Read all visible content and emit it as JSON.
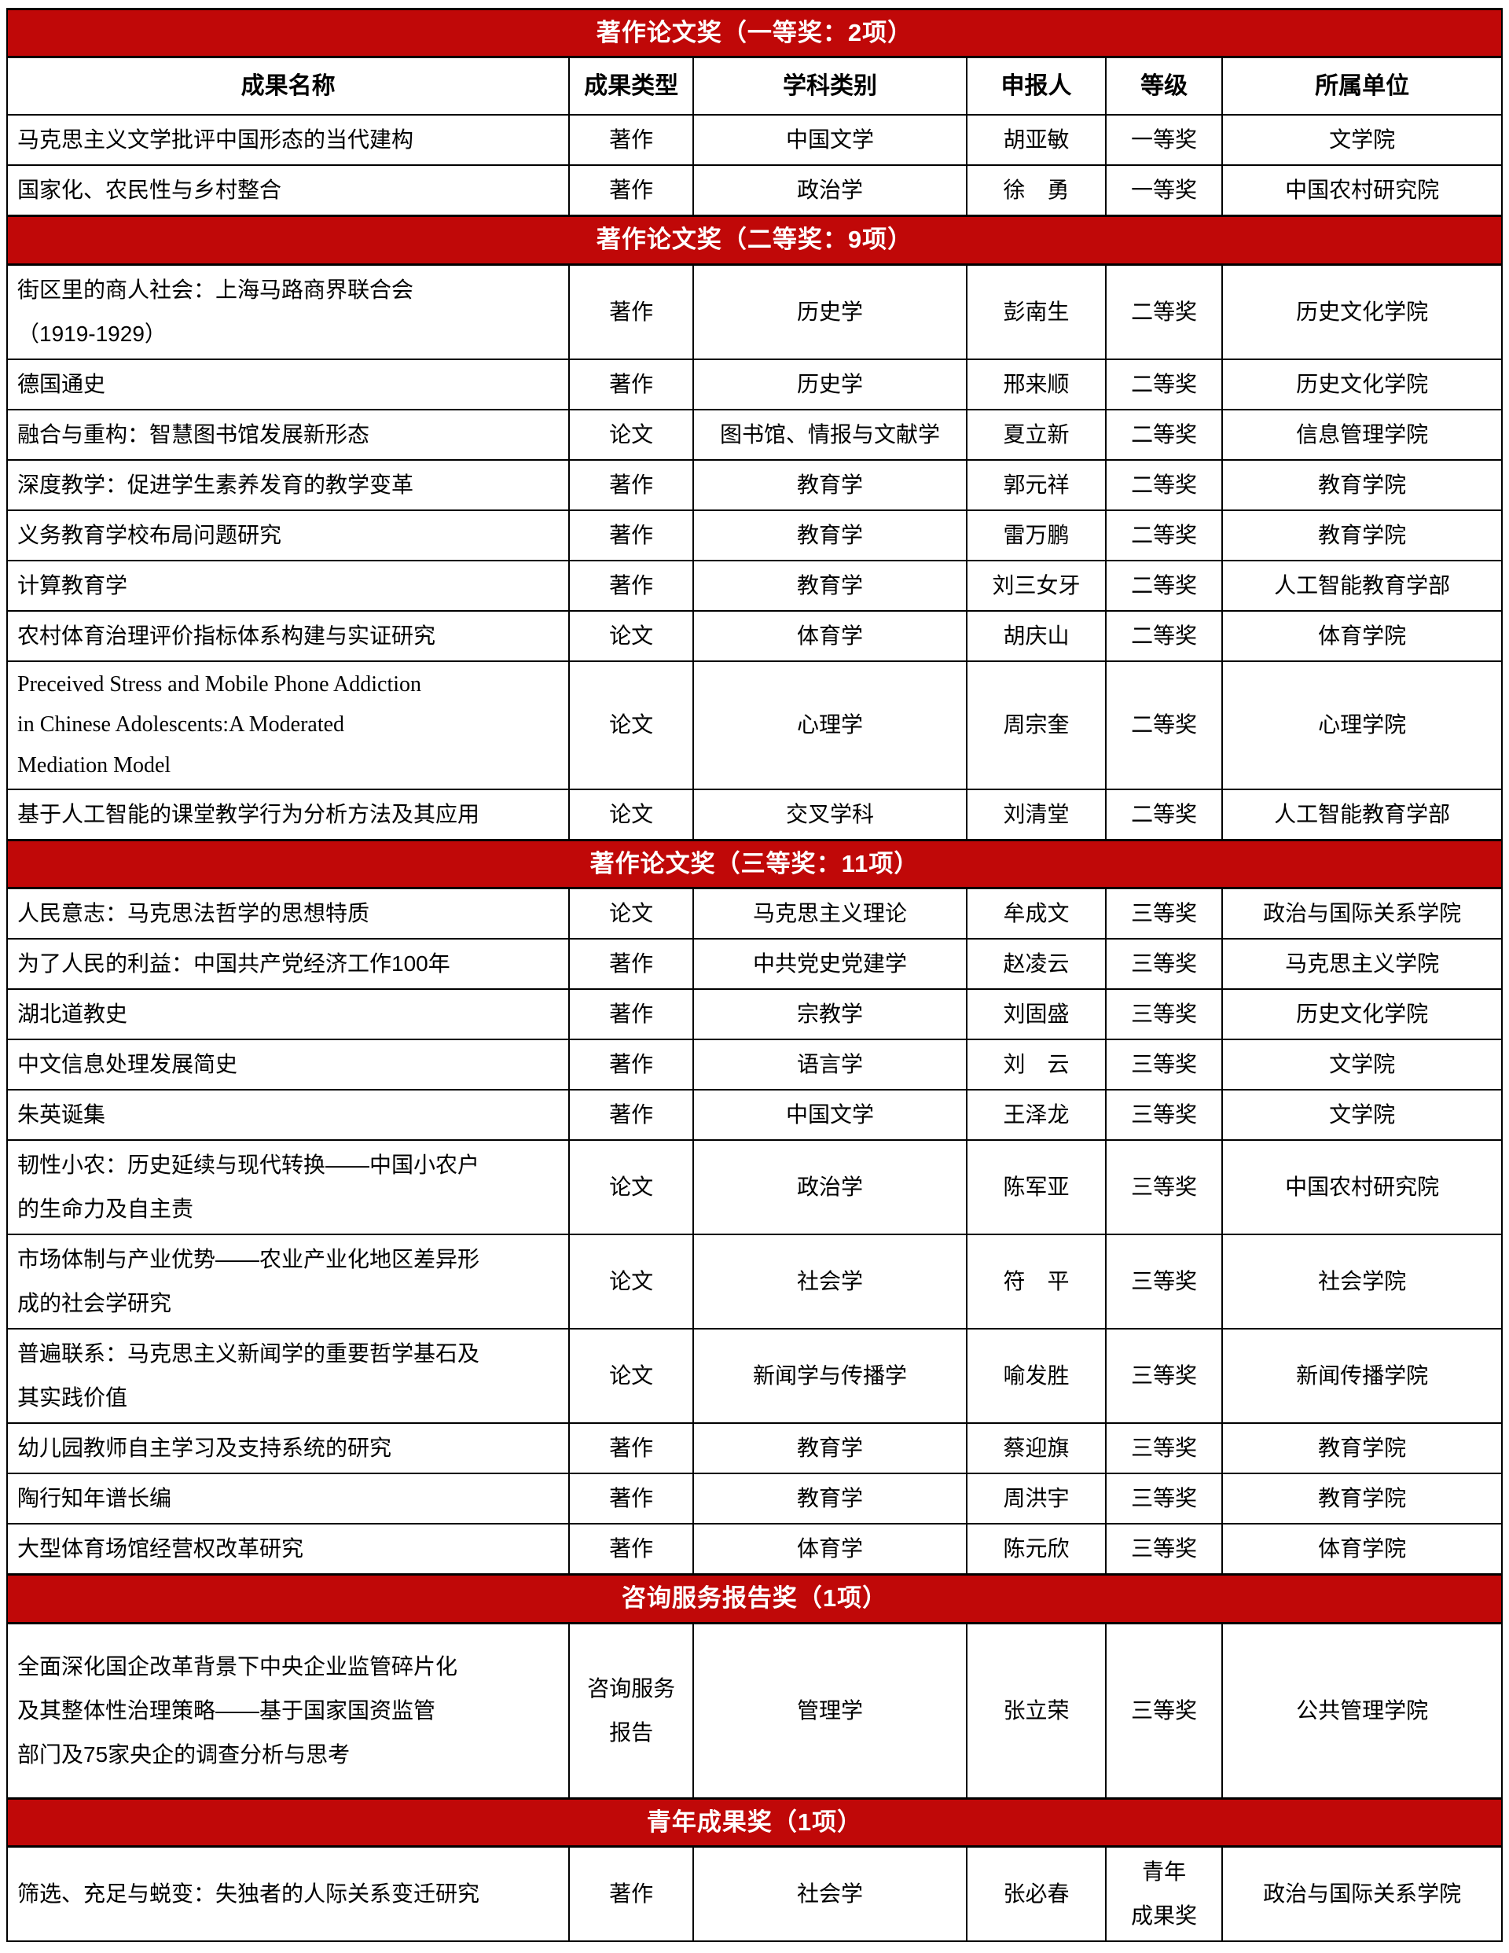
{
  "theme": {
    "band_background": "#c00808",
    "band_text_color": "#ffffff",
    "border_color": "#000000",
    "body_text_color": "#000000"
  },
  "table": {
    "columns": [
      "成果名称",
      "成果类型",
      "学科类别",
      "申报人",
      "等级",
      "所属单位"
    ],
    "sections": [
      {
        "band": "著作论文奖（一等奖：2项）",
        "show_header": true,
        "rows": [
          {
            "name": "马克思主义文学批评中国形态的当代建构",
            "type": "著作",
            "subject": "中国文学",
            "applicant": "胡亚敏",
            "level": "一等奖",
            "unit": "文学院"
          },
          {
            "name": "国家化、农民性与乡村整合",
            "type": "著作",
            "subject": "政治学",
            "applicant": "徐　勇",
            "level": "一等奖",
            "unit": "中国农村研究院"
          }
        ]
      },
      {
        "band": "著作论文奖（二等奖：9项）",
        "show_header": false,
        "rows": [
          {
            "name": "街区里的商人社会：上海马路商界联合会\n（1919-1929）",
            "type": "著作",
            "subject": "历史学",
            "applicant": "彭南生",
            "level": "二等奖",
            "unit": "历史文化学院"
          },
          {
            "name": "德国通史",
            "type": "著作",
            "subject": "历史学",
            "applicant": "邢来顺",
            "level": "二等奖",
            "unit": "历史文化学院"
          },
          {
            "name": "融合与重构：智慧图书馆发展新形态",
            "type": "论文",
            "subject": "图书馆、情报与文献学",
            "applicant": "夏立新",
            "level": "二等奖",
            "unit": "信息管理学院"
          },
          {
            "name": "深度教学：促进学生素养发育的教学变革",
            "type": "著作",
            "subject": "教育学",
            "applicant": "郭元祥",
            "level": "二等奖",
            "unit": "教育学院"
          },
          {
            "name": "义务教育学校布局问题研究",
            "type": "著作",
            "subject": "教育学",
            "applicant": "雷万鹏",
            "level": "二等奖",
            "unit": "教育学院"
          },
          {
            "name": "计算教育学",
            "type": "著作",
            "subject": "教育学",
            "applicant": "刘三女牙",
            "level": "二等奖",
            "unit": "人工智能教育学部"
          },
          {
            "name": "农村体育治理评价指标体系构建与实证研究",
            "type": "论文",
            "subject": "体育学",
            "applicant": "胡庆山",
            "level": "二等奖",
            "unit": "体育学院"
          },
          {
            "name": "Preceived Stress and Mobile Phone Addiction\nin Chinese Adolescents:A Moderated\nMediation Model",
            "latin": true,
            "type": "论文",
            "subject": "心理学",
            "applicant": "周宗奎",
            "level": "二等奖",
            "unit": "心理学院"
          },
          {
            "name": "基于人工智能的课堂教学行为分析方法及其应用",
            "type": "论文",
            "subject": "交叉学科",
            "applicant": "刘清堂",
            "level": "二等奖",
            "unit": "人工智能教育学部"
          }
        ]
      },
      {
        "band": "著作论文奖（三等奖：11项）",
        "show_header": false,
        "rows": [
          {
            "name": "人民意志：马克思法哲学的思想特质",
            "type": "论文",
            "subject": "马克思主义理论",
            "applicant": "牟成文",
            "level": "三等奖",
            "unit": "政治与国际关系学院"
          },
          {
            "name": "为了人民的利益：中国共产党经济工作100年",
            "type": "著作",
            "subject": "中共党史党建学",
            "applicant": "赵凌云",
            "level": "三等奖",
            "unit": "马克思主义学院"
          },
          {
            "name": "湖北道教史",
            "type": "著作",
            "subject": "宗教学",
            "applicant": "刘固盛",
            "level": "三等奖",
            "unit": "历史文化学院"
          },
          {
            "name": "中文信息处理发展简史",
            "type": "著作",
            "subject": "语言学",
            "applicant": "刘　云",
            "level": "三等奖",
            "unit": "文学院"
          },
          {
            "name": "朱英诞集",
            "type": "著作",
            "subject": "中国文学",
            "applicant": "王泽龙",
            "level": "三等奖",
            "unit": "文学院"
          },
          {
            "name": "韧性小农：历史延续与现代转换——中国小农户\n的生命力及自主责",
            "type": "论文",
            "subject": "政治学",
            "applicant": "陈军亚",
            "level": "三等奖",
            "unit": "中国农村研究院"
          },
          {
            "name": "市场体制与产业优势——农业产业化地区差异形\n成的社会学研究",
            "type": "论文",
            "subject": "社会学",
            "applicant": "符　平",
            "level": "三等奖",
            "unit": "社会学院"
          },
          {
            "name": "普遍联系：马克思主义新闻学的重要哲学基石及\n其实践价值",
            "type": "论文",
            "subject": "新闻学与传播学",
            "applicant": "喻发胜",
            "level": "三等奖",
            "unit": "新闻传播学院"
          },
          {
            "name": "幼儿园教师自主学习及支持系统的研究",
            "type": "著作",
            "subject": "教育学",
            "applicant": "蔡迎旗",
            "level": "三等奖",
            "unit": "教育学院"
          },
          {
            "name": "陶行知年谱长编",
            "type": "著作",
            "subject": "教育学",
            "applicant": "周洪宇",
            "level": "三等奖",
            "unit": "教育学院"
          },
          {
            "name": "大型体育场馆经营权改革研究",
            "type": "著作",
            "subject": "体育学",
            "applicant": "陈元欣",
            "level": "三等奖",
            "unit": "体育学院"
          }
        ]
      },
      {
        "band": "咨询服务报告奖（1项）",
        "show_header": false,
        "rows": [
          {
            "name": "全面深化国企改革背景下中央企业监管碎片化\n及其整体性治理策略——基于国家国资监管\n部门及75家央企的调查分析与思考",
            "consult": true,
            "type": "咨询服务\n报告",
            "subject": "管理学",
            "applicant": "张立荣",
            "level": "三等奖",
            "unit": "公共管理学院"
          }
        ]
      },
      {
        "band": "青年成果奖（1项）",
        "show_header": false,
        "rows": [
          {
            "name": "筛选、充足与蜕变：失独者的人际关系变迁研究",
            "type": "著作",
            "subject": "社会学",
            "applicant": "张必春",
            "level": "青年\n成果奖",
            "unit": "政治与国际关系学院"
          }
        ]
      }
    ]
  }
}
